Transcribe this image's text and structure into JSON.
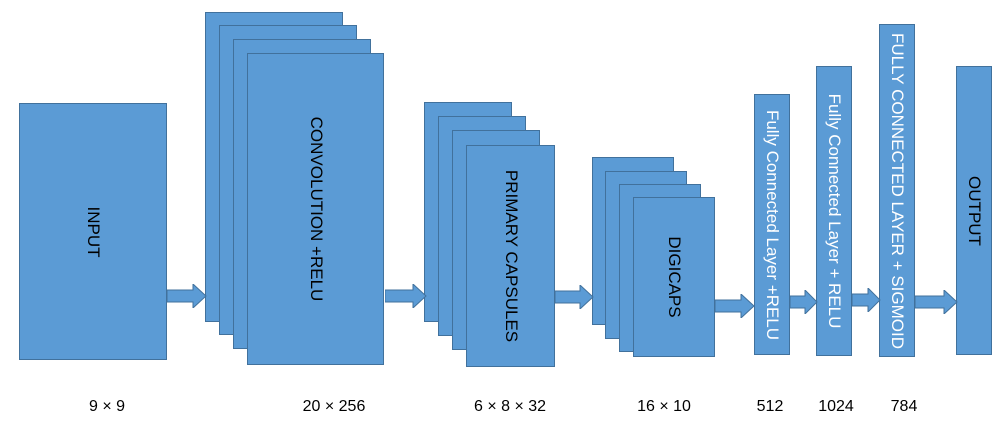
{
  "colors": {
    "block": "#5b9bd5",
    "block_border": "#41719c",
    "arrow": "#5b9bd5"
  },
  "layers": {
    "input": "INPUT",
    "conv": "CONVOLUTION +RELU",
    "primary": "PRIMARY CAPSULES",
    "digicaps": "DIGICAPS",
    "fc1": "Fully Connected Layer +RELU",
    "fc2": "Fully Connected Layer + RELU",
    "fc3": "FULLY CONNECTED LAYER + SIGMOID",
    "output": "OUTPUT"
  },
  "dims": {
    "input": "9 × 9",
    "conv": "20 × 256",
    "primary": "6 × 8 × 32",
    "digicaps": "16 × 10",
    "fc1": "512",
    "fc2": "1024",
    "fc3": "784"
  }
}
